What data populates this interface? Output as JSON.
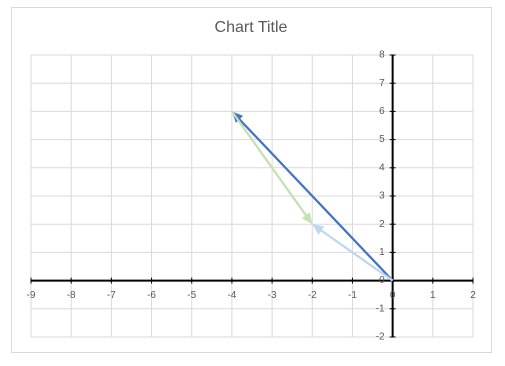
{
  "chart_data": {
    "type": "scatter",
    "title": "Chart Title",
    "xlim": [
      -9,
      2
    ],
    "ylim": [
      -2,
      8
    ],
    "xticks": [
      -9,
      -8,
      -7,
      -6,
      -5,
      -4,
      -3,
      -2,
      -1,
      0,
      1,
      2
    ],
    "yticks": [
      -2,
      -1,
      0,
      1,
      2,
      3,
      4,
      5,
      6,
      7,
      8
    ],
    "grid": true,
    "series": [
      {
        "color": "#4472c4",
        "x": [
          0,
          -4
        ],
        "values": [
          0,
          6
        ]
      },
      {
        "color": "#c5e0b4",
        "x": [
          -4,
          -2
        ],
        "values": [
          6,
          2
        ]
      },
      {
        "color": "#bdd7ee",
        "x": [
          0,
          -2
        ],
        "values": [
          0,
          2
        ]
      }
    ]
  }
}
